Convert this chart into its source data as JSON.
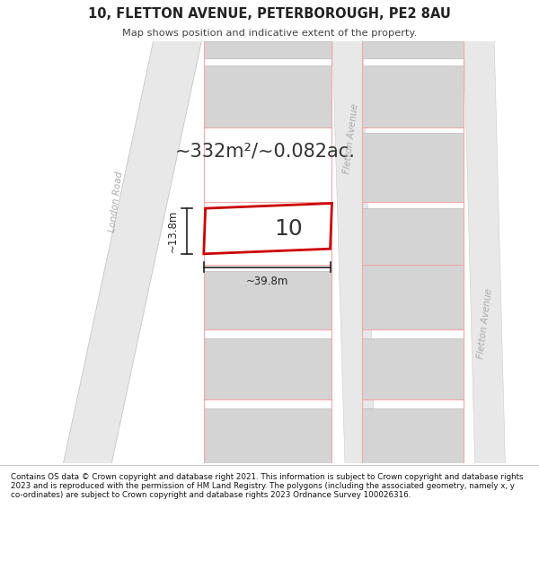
{
  "title": "10, FLETTON AVENUE, PETERBOROUGH, PE2 8AU",
  "subtitle": "Map shows position and indicative extent of the property.",
  "area_text": "~332m²/~0.082ac.",
  "property_number": "10",
  "width_label": "~39.8m",
  "height_label": "~13.8m",
  "footer": "Contains OS data © Crown copyright and database right 2021. This information is subject to Crown copyright and database rights 2023 and is reproduced with the permission of HM Land Registry. The polygons (including the associated geometry, namely x, y co-ordinates) are subject to Crown copyright and database rights 2023 Ordnance Survey 100026316.",
  "bg_color": "#ffffff",
  "map_bg": "#f0f0f0",
  "block_gray": "#d4d4d4",
  "block_outline": "#bbbbbb",
  "road_fill": "#ffffff",
  "plot_line_color": "#f0aaaa",
  "property_fill": "#ffffff",
  "property_outline": "#cc0000",
  "text_dark": "#222222",
  "road_label_color": "#aaaaaa",
  "london_road_label": "London Road",
  "fletton_avenue_label_1": "Fletton Avenue",
  "fletton_avenue_label_2": "Fletton Avenue",
  "footer_sep_color": "#aaaaaa"
}
